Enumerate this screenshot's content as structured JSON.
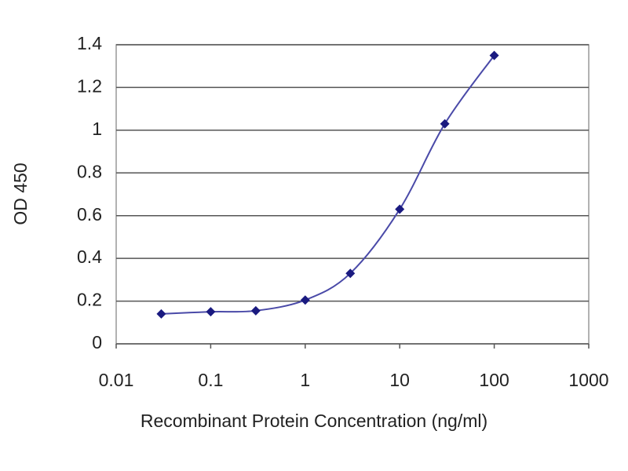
{
  "chart_data": {
    "type": "line",
    "x_label": "Recombinant Protein Concentration (ng/ml)",
    "y_label": "OD 450",
    "x": [
      0.03,
      0.1,
      0.3,
      1,
      3,
      10,
      30,
      100
    ],
    "series": [
      {
        "values": [
          0.14,
          0.15,
          0.155,
          0.205,
          0.33,
          0.63,
          1.03,
          1.35
        ],
        "color": "#1a1a80",
        "line_color": "#4a4aa8"
      }
    ],
    "x_scale": "log",
    "xlim": [
      0.01,
      1000
    ],
    "xticks": [
      0.01,
      0.1,
      1,
      10,
      100,
      1000
    ],
    "ylim": [
      0,
      1.4
    ],
    "yticks": [
      0,
      0.2,
      0.4,
      0.6,
      0.8,
      1,
      1.2,
      1.4
    ],
    "grid": true
  }
}
